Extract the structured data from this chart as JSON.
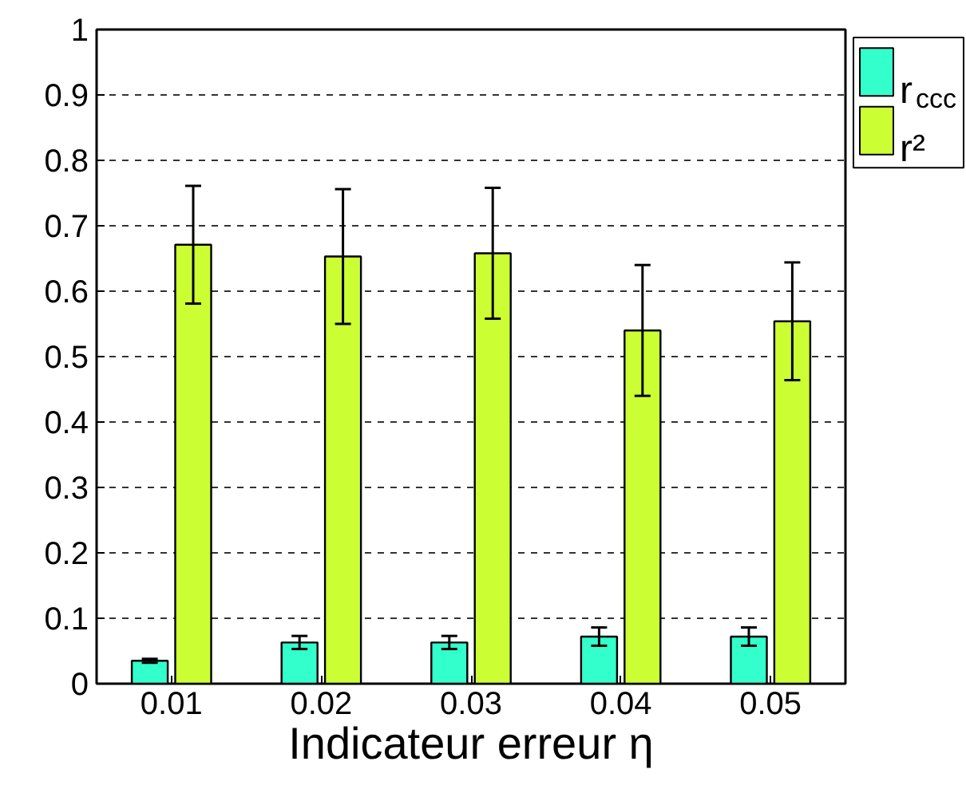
{
  "chart_data": {
    "type": "bar",
    "xlabel": "Indicateur erreur η",
    "categories": [
      "0.01",
      "0.02",
      "0.03",
      "0.04",
      "0.05"
    ],
    "series": [
      {
        "name": "r$_{ccc}$",
        "color": "#33ffcc",
        "values": [
          0.035,
          0.063,
          0.063,
          0.072,
          0.072
        ],
        "errors": [
          0.003,
          0.01,
          0.01,
          0.014,
          0.014
        ]
      },
      {
        "name": "r²",
        "color": "#ccff33",
        "values": [
          0.671,
          0.653,
          0.658,
          0.54,
          0.554
        ],
        "errors": [
          0.09,
          0.103,
          0.1,
          0.1,
          0.09
        ]
      }
    ],
    "ylim": [
      0,
      1
    ],
    "yticks": [
      0,
      0.1,
      0.2,
      0.3,
      0.4,
      0.5,
      0.6,
      0.7,
      0.8,
      0.9,
      1
    ],
    "grid": "y",
    "legend": "top right"
  }
}
